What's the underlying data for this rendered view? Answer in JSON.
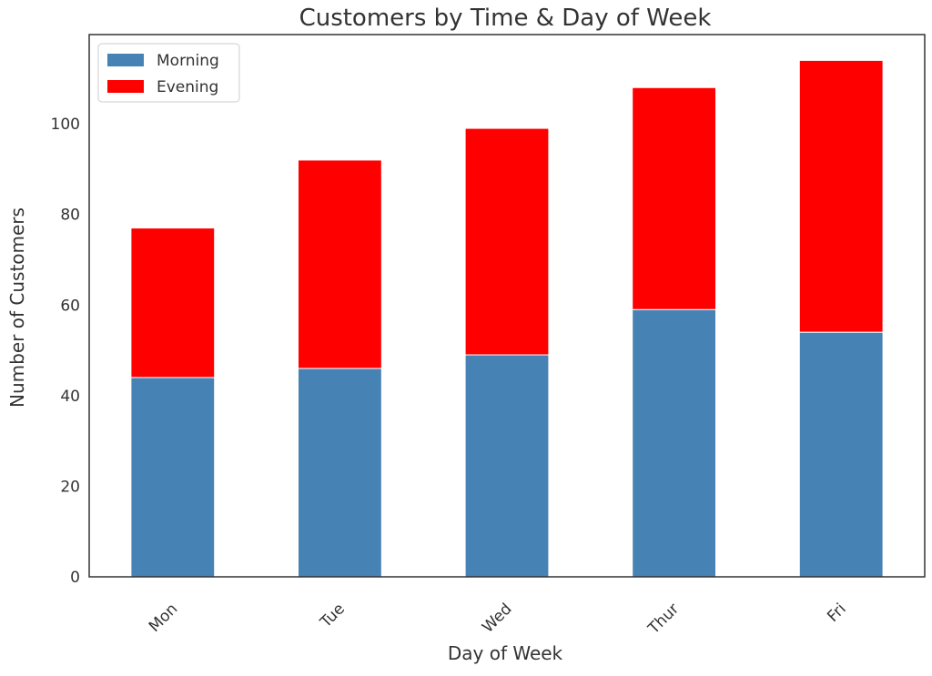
{
  "chart_data": {
    "type": "bar",
    "stacked": true,
    "title": "Customers by Time & Day of Week",
    "xlabel": "Day of Week",
    "ylabel": "Number of Customers",
    "categories": [
      "Mon",
      "Tue",
      "Wed",
      "Thur",
      "Fri"
    ],
    "series": [
      {
        "name": "Morning",
        "color": "#4682b4",
        "values": [
          44,
          46,
          49,
          59,
          54
        ]
      },
      {
        "name": "Evening",
        "color": "#ff0000",
        "values": [
          33,
          46,
          50,
          49,
          60
        ]
      }
    ],
    "ylim": [
      0,
      119.7
    ],
    "yticks": [
      0,
      20,
      40,
      60,
      80,
      100
    ],
    "grid": false,
    "legend": "top-left",
    "xtick_rotation": 45
  }
}
